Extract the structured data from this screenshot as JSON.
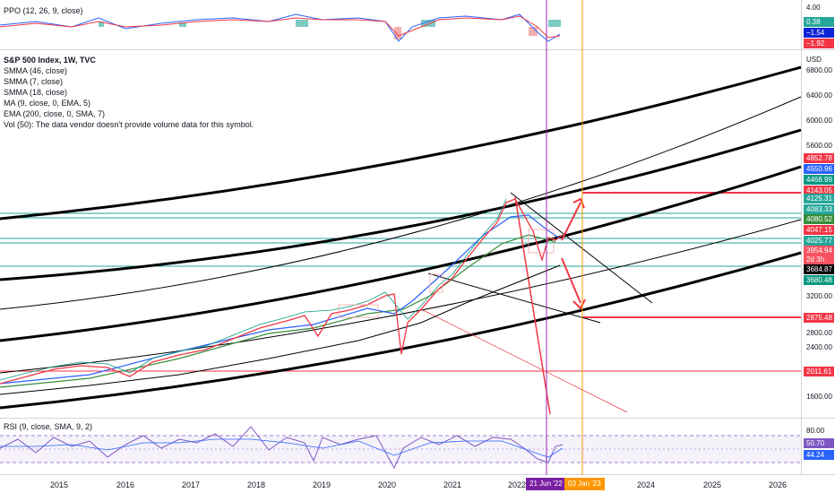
{
  "ppo": {
    "label": "PPO (12, 26, 9, close)",
    "axis_top": "4.00",
    "values": [
      {
        "text": "0.38",
        "color": "#26a69a"
      },
      {
        "text": "−1.54",
        "color": "#0c24d6"
      },
      {
        "text": "−1.92",
        "color": "#f23645"
      }
    ]
  },
  "legend": {
    "title": "S&P 500 Index, 1W, TVC",
    "lines": [
      "SMMA (46, close)",
      "SMMA (7, close)",
      "SMMA (18, close)",
      "MA (9, close, 0, EMA, 5)",
      "EMA (200, close, 0, SMA, 7)",
      "Vol (50): The data vendor doesn't provide volume data for this symbol."
    ]
  },
  "price_axis": {
    "currency": "USD",
    "ticks": [
      "6800.00",
      "6400.00",
      "6000.00",
      "5600.00",
      "3200.00",
      "2800.00",
      "2400.00",
      "1600.00"
    ],
    "tags": [
      {
        "text": "4852.78",
        "color": "#f23645"
      },
      {
        "text": "4550.96",
        "color": "#2962ff"
      },
      {
        "text": "4468.99",
        "color": "#089981"
      },
      {
        "text": "4143.05",
        "color": "#f23645"
      },
      {
        "text": "4125.31",
        "color": "#26a69a"
      },
      {
        "text": "4083.33",
        "color": "#26a69a"
      },
      {
        "text": "4080.52",
        "color": "#388e3c"
      },
      {
        "text": "4047.15",
        "color": "#f23645"
      },
      {
        "text": "4025.77",
        "color": "#26a69a"
      },
      {
        "text": "3954.94",
        "color": "#f7525f"
      },
      {
        "text": "2d 3h",
        "color": "#f7525f"
      },
      {
        "text": "3684.87",
        "color": "#000000"
      },
      {
        "text": "3680.48",
        "color": "#089981"
      },
      {
        "text": "2875.48",
        "color": "#f23645"
      },
      {
        "text": "2011.61",
        "color": "#f23645"
      }
    ]
  },
  "rsi": {
    "label": "RSI (9, close, SMA, 9, 2)",
    "axis_top": "80.00",
    "values": [
      {
        "text": "50.70",
        "color": "#7e57c2"
      },
      {
        "text": "44.24",
        "color": "#2962ff"
      }
    ]
  },
  "time_axis": {
    "years": [
      "2015",
      "2016",
      "2017",
      "2018",
      "2019",
      "2020",
      "2021",
      "2022",
      "2024",
      "2025",
      "2026"
    ],
    "markers": [
      {
        "text": "21 Jun '22",
        "color": "#7b1fa2"
      },
      {
        "text": "03 Jan '23",
        "color": "#ff9800"
      }
    ]
  },
  "colors": {
    "up": "#089981",
    "down": "#f23645",
    "rsi": "#7e57c2",
    "smma_blue": "#2962ff",
    "ema_green": "#388e3c"
  }
}
